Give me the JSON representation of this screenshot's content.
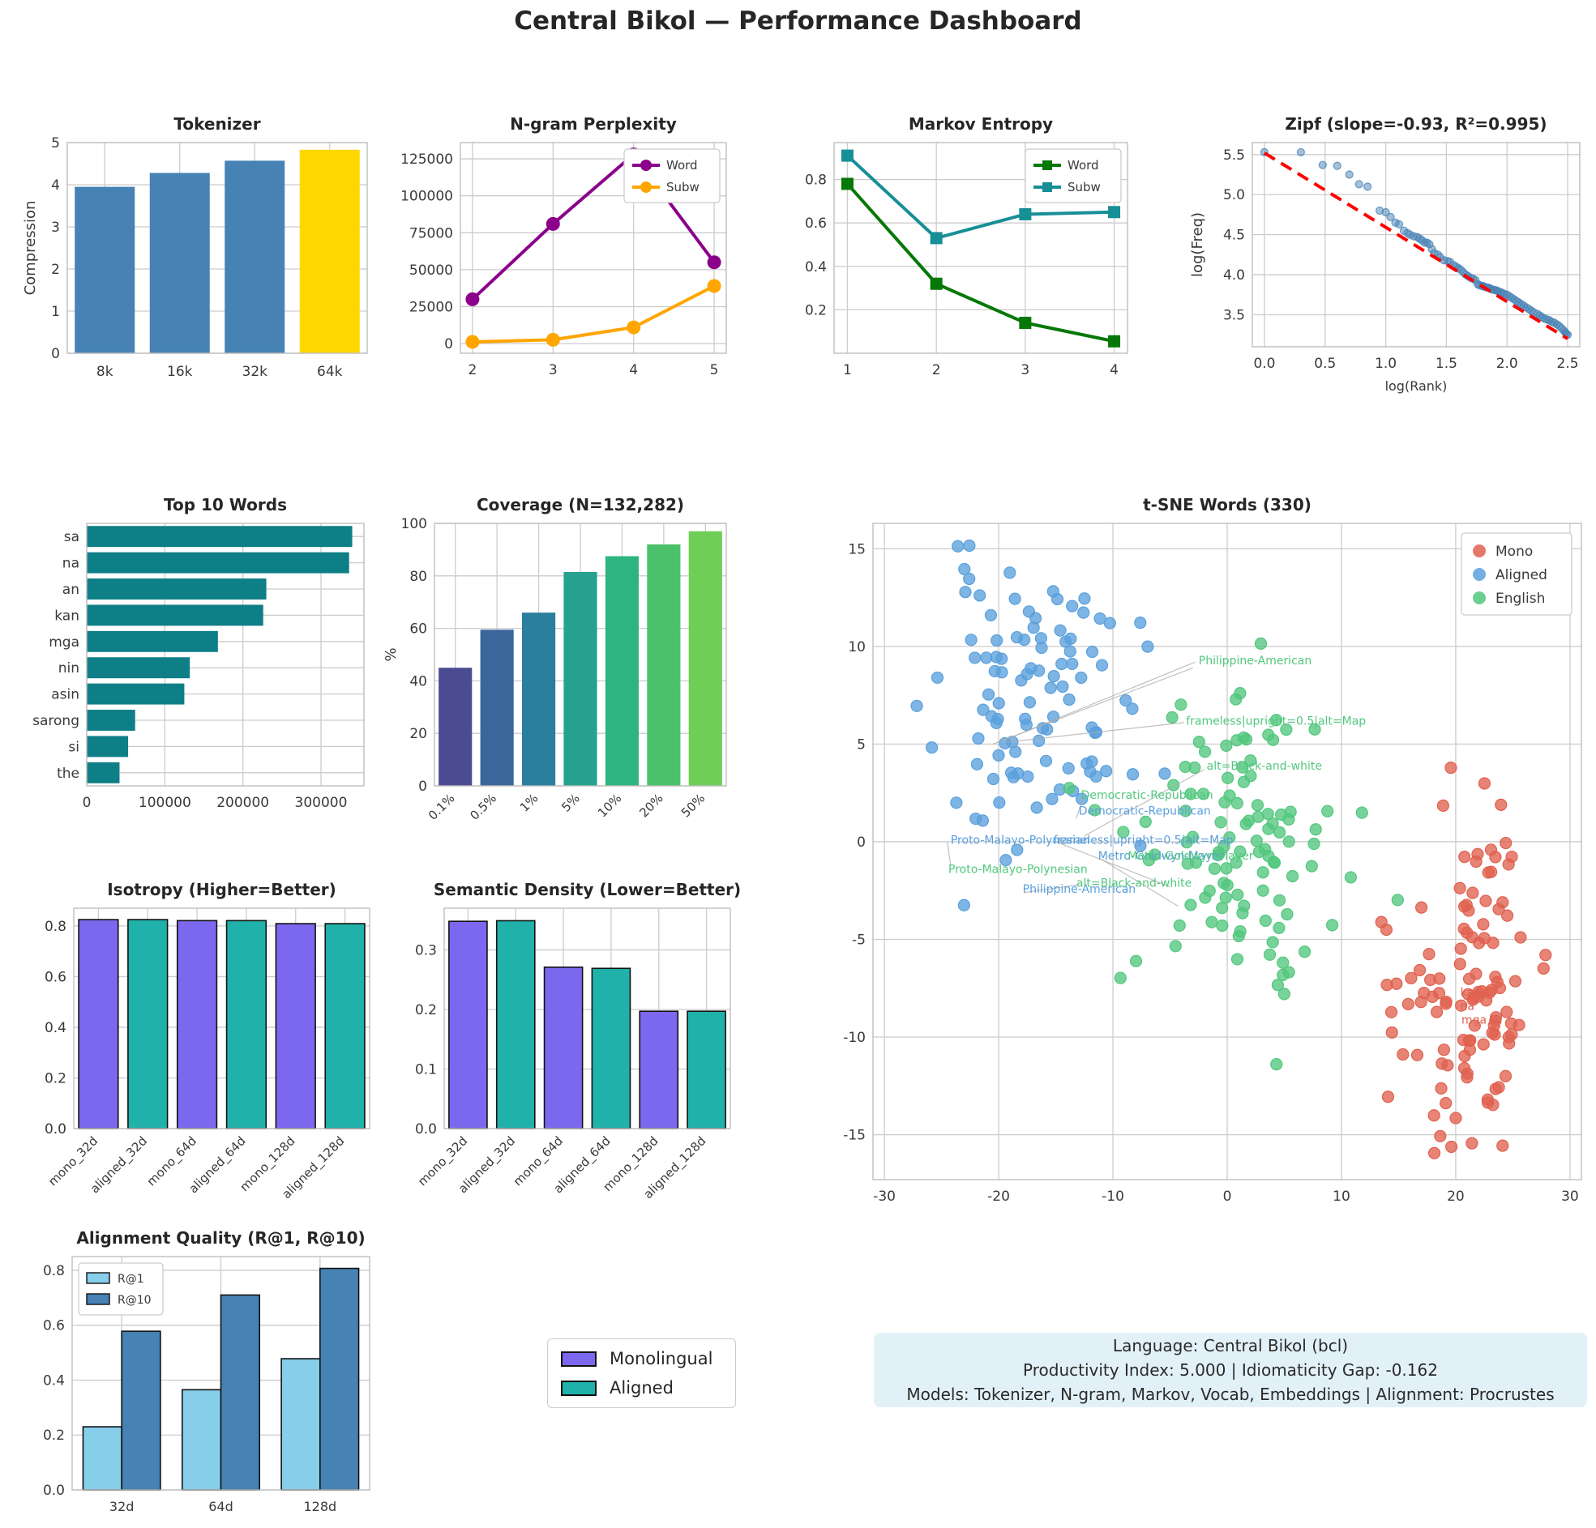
{
  "page": {
    "title": "Central Bikol — Performance Dashboard"
  },
  "info_box": {
    "line1": "Language: Central Bikol (bcl)",
    "line2": "Productivity Index: 5.000  |  Idiomaticity Gap: -0.162",
    "line3": "Models: Tokenizer, N-gram, Markov, Vocab, Embeddings  |  Alignment: Procrustes"
  },
  "legend_panel": {
    "items": [
      {
        "label": "Monolingual",
        "color": "#7B68EE"
      },
      {
        "label": "Aligned",
        "color": "#20B2AA"
      }
    ]
  },
  "chart_data": [
    {
      "id": "tokenizer",
      "type": "bar",
      "title": "Tokenizer",
      "ylabel": "Compression",
      "categories": [
        "8k",
        "16k",
        "32k",
        "64k"
      ],
      "values": [
        3.95,
        4.28,
        4.57,
        4.83
      ],
      "bar_colors": [
        "#4682B4",
        "#4682B4",
        "#4682B4",
        "#FFD700"
      ],
      "ylim": [
        0,
        5
      ],
      "ytick_vals": [
        0,
        1,
        2,
        3,
        4,
        5
      ],
      "ytick_labels": [
        "0",
        "1",
        "2",
        "3",
        "4",
        "5"
      ]
    },
    {
      "id": "ngram",
      "type": "line",
      "title": "N-gram Perplexity",
      "x": [
        2,
        3,
        4,
        5
      ],
      "series": [
        {
          "name": "Word",
          "color": "#8B008B",
          "marker": "circle",
          "values": [
            30000,
            81000,
            128000,
            55000
          ]
        },
        {
          "name": "Subw",
          "color": "#FFA500",
          "marker": "circle",
          "values": [
            1200,
            2600,
            11000,
            39000
          ]
        }
      ],
      "xlim": [
        1.85,
        5.15
      ],
      "ylim": [
        -6500,
        136000
      ],
      "xtick_vals": [
        2,
        3,
        4,
        5
      ],
      "xtick_labels": [
        "2",
        "3",
        "4",
        "5"
      ],
      "ytick_vals": [
        0,
        25000,
        50000,
        75000,
        100000,
        125000
      ],
      "ytick_labels": [
        "0",
        "25000",
        "50000",
        "75000",
        "100000",
        "125000"
      ],
      "legend_pos": "ne"
    },
    {
      "id": "markov",
      "type": "line",
      "title": "Markov Entropy",
      "x": [
        1,
        2,
        3,
        4
      ],
      "series": [
        {
          "name": "Word",
          "color": "#067806",
          "marker": "square",
          "values": [
            0.78,
            0.32,
            0.14,
            0.055
          ]
        },
        {
          "name": "Subw",
          "color": "#178F96",
          "marker": "square",
          "values": [
            0.91,
            0.53,
            0.64,
            0.65
          ]
        }
      ],
      "xlim": [
        0.85,
        4.15
      ],
      "ylim": [
        0,
        0.97
      ],
      "xtick_vals": [
        1,
        2,
        3,
        4
      ],
      "xtick_labels": [
        "1",
        "2",
        "3",
        "4"
      ],
      "ytick_vals": [
        0.2,
        0.4,
        0.6,
        0.8
      ],
      "ytick_labels": [
        "0.2",
        "0.4",
        "0.6",
        "0.8"
      ],
      "legend_pos": "ne"
    },
    {
      "id": "zipf",
      "type": "scatter",
      "title": "Zipf (slope=-0.93, R²=0.995)",
      "xlabel": "log(Rank)",
      "ylabel": "log(Freq)",
      "point_color": "#4682B4",
      "trend": {
        "color": "#FF0000",
        "x1": 0.0,
        "y1": 5.52,
        "x2": 2.5,
        "y2": 3.2
      },
      "xlim": [
        -0.1,
        2.6
      ],
      "ylim": [
        3.1,
        5.65
      ],
      "xtick_vals": [
        0,
        0.5,
        1,
        1.5,
        2,
        2.5
      ],
      "xtick_labels": [
        "0.0",
        "0.5",
        "1.0",
        "1.5",
        "2.0",
        "2.5"
      ],
      "ytick_vals": [
        3.5,
        4,
        4.5,
        5,
        5.5
      ],
      "ytick_labels": [
        "3.5",
        "4.0",
        "4.5",
        "5.0",
        "5.5"
      ],
      "points": [
        [
          0,
          5.53
        ],
        [
          0.3,
          5.53
        ],
        [
          0.48,
          5.37
        ],
        [
          0.6,
          5.36
        ],
        [
          0.7,
          5.25
        ],
        [
          0.78,
          5.13
        ],
        [
          0.85,
          5.1
        ],
        [
          0.95,
          4.8
        ],
        [
          1,
          4.78
        ],
        [
          1.04,
          4.72
        ],
        [
          1.08,
          4.65
        ],
        [
          1.11,
          4.63
        ],
        [
          1.15,
          4.55
        ],
        [
          1.18,
          4.52
        ],
        [
          1.2,
          4.5
        ],
        [
          1.23,
          4.48
        ],
        [
          1.26,
          4.47
        ],
        [
          1.28,
          4.45
        ],
        [
          1.3,
          4.43
        ],
        [
          1.32,
          4.4
        ],
        [
          1.34,
          4.4
        ],
        [
          1.36,
          4.38
        ],
        [
          1.38,
          4.32
        ],
        [
          1.4,
          4.27
        ],
        [
          1.43,
          4.25
        ],
        [
          1.45,
          4.22
        ],
        [
          1.48,
          4.18
        ],
        [
          1.51,
          4.17
        ],
        [
          1.53,
          4.16
        ],
        [
          1.56,
          4.12
        ],
        [
          1.58,
          4.1
        ],
        [
          1.6,
          4.08
        ],
        [
          1.62,
          4.06
        ],
        [
          1.64,
          4.03
        ],
        [
          1.66,
          4
        ],
        [
          1.68,
          3.98
        ],
        [
          1.7,
          3.96
        ],
        [
          1.72,
          3.95
        ],
        [
          1.74,
          3.93
        ],
        [
          1.76,
          3.88
        ],
        [
          1.77,
          3.87
        ],
        [
          1.79,
          3.86
        ],
        [
          1.8,
          3.86
        ],
        [
          1.81,
          3.85
        ],
        [
          1.83,
          3.84
        ],
        [
          1.84,
          3.84
        ],
        [
          1.86,
          3.83
        ],
        [
          1.87,
          3.82
        ],
        [
          1.89,
          3.81
        ],
        [
          1.9,
          3.81
        ],
        [
          1.92,
          3.8
        ],
        [
          1.93,
          3.79
        ],
        [
          1.95,
          3.78
        ],
        [
          1.96,
          3.77
        ],
        [
          1.98,
          3.76
        ],
        [
          2,
          3.75
        ],
        [
          2.02,
          3.73
        ],
        [
          2.04,
          3.71
        ],
        [
          2.06,
          3.69
        ],
        [
          2.08,
          3.67
        ],
        [
          2.1,
          3.65
        ],
        [
          2.12,
          3.63
        ],
        [
          2.14,
          3.61
        ],
        [
          2.16,
          3.59
        ],
        [
          2.18,
          3.57
        ],
        [
          2.2,
          3.55
        ],
        [
          2.22,
          3.53
        ],
        [
          2.25,
          3.51
        ],
        [
          2.27,
          3.49
        ],
        [
          2.29,
          3.47
        ],
        [
          2.31,
          3.45
        ],
        [
          2.33,
          3.44
        ],
        [
          2.35,
          3.43
        ],
        [
          2.37,
          3.41
        ],
        [
          2.39,
          3.4
        ],
        [
          2.41,
          3.38
        ],
        [
          2.43,
          3.36
        ],
        [
          2.45,
          3.33
        ],
        [
          2.47,
          3.3
        ],
        [
          2.48,
          3.28
        ],
        [
          2.49,
          3.26
        ],
        [
          2.5,
          3.25
        ]
      ]
    },
    {
      "id": "top10",
      "type": "hbar",
      "title": "Top 10 Words",
      "categories": [
        "sa",
        "na",
        "an",
        "kan",
        "mga",
        "nin",
        "asin",
        "sarong",
        "si",
        "the"
      ],
      "values": [
        340000,
        336000,
        230000,
        226000,
        168000,
        132000,
        125000,
        62000,
        53000,
        42000
      ],
      "bar_color": "#0E7F86",
      "xlim": [
        0,
        355000
      ],
      "xtick_vals": [
        0,
        100000,
        200000,
        300000
      ],
      "xtick_labels": [
        "0",
        "100000",
        "200000",
        "300000"
      ]
    },
    {
      "id": "coverage",
      "type": "bar",
      "title": "Coverage (N=132,282)",
      "ylabel": "%",
      "categories": [
        "0.1%",
        "0.5%",
        "1%",
        "5%",
        "10%",
        "20%",
        "50%"
      ],
      "values": [
        45,
        59.5,
        66,
        81.5,
        87.5,
        92,
        97
      ],
      "bar_colors": [
        "#4B4B91",
        "#3A679B",
        "#2A7E9E",
        "#26A08F",
        "#2EB57F",
        "#4CC16C",
        "#6ECE58"
      ],
      "ylim": [
        0,
        100
      ],
      "ytick_vals": [
        0,
        20,
        40,
        60,
        80,
        100
      ],
      "ytick_labels": [
        "0",
        "20",
        "40",
        "60",
        "80",
        "100"
      ],
      "xtick_rotate": 45
    },
    {
      "id": "tsne",
      "type": "tsne",
      "title": "t-SNE Words (330)",
      "xlim": [
        -31,
        31
      ],
      "ylim": [
        -17.3,
        16.3
      ],
      "xtick_vals": [
        -30,
        -20,
        -10,
        0,
        10,
        20,
        30
      ],
      "xtick_labels": [
        "-30",
        "-20",
        "-10",
        "0",
        "10",
        "20",
        "30"
      ],
      "ytick_vals": [
        -15,
        -10,
        -5,
        0,
        5,
        10,
        15
      ],
      "ytick_labels": [
        "-15",
        "-10",
        "-5",
        "0",
        "5",
        "10",
        "15"
      ],
      "legend": [
        {
          "label": "Mono",
          "color": "#E0614F"
        },
        {
          "label": "Aligned",
          "color": "#5AA0DC"
        },
        {
          "label": "English",
          "color": "#52C77E"
        }
      ],
      "clusters": [
        {
          "name": "Aligned",
          "color": "#5AA0DC",
          "cx": -17,
          "cy": 7,
          "sx": 4.3,
          "sy": 3.6,
          "n": 105,
          "seed": 11
        },
        {
          "name": "English",
          "color": "#52C77E",
          "cx": 0.5,
          "cy": 0.3,
          "sx": 4.6,
          "sy": 3.5,
          "n": 110,
          "seed": 22
        },
        {
          "name": "Mono",
          "color": "#E0614F",
          "cx": 21,
          "cy": -7.5,
          "sx": 3.4,
          "sy": 4.3,
          "n": 115,
          "seed": 33
        }
      ],
      "annotations": [
        {
          "text": "Philippine-American",
          "x": -2.5,
          "y": 9.3,
          "color": "#52C77E"
        },
        {
          "text": "frameless|upright=0.5|alt=Map",
          "x": -3.6,
          "y": 6.2,
          "color": "#52C77E"
        },
        {
          "text": "alt=Black-and-white",
          "x": -1.8,
          "y": 3.9,
          "color": "#52C77E"
        },
        {
          "text": "Democratic-Republican",
          "x": -12.8,
          "y": 2.4,
          "color": "#52C77E"
        },
        {
          "text": "Democratic-Republican",
          "x": -13.0,
          "y": 1.6,
          "color": "#5AA0DC"
        },
        {
          "text": "Proto-Malayo-Polynesian",
          "x": -24.2,
          "y": 0.1,
          "color": "#5AA0DC"
        },
        {
          "text": "frameless|upright=0.5|alt=Map",
          "x": -15.2,
          "y": 0.1,
          "color": "#5AA0DC"
        },
        {
          "text": "Metro-Goldwyn-Mayer",
          "x": -11.3,
          "y": -0.7,
          "color": "#5AA0DC"
        },
        {
          "text": "Metro-Goldwyn-Mayer",
          "x": -8.7,
          "y": -0.7,
          "color": "#52C77E"
        },
        {
          "text": "Proto-Malayo-Polynesian",
          "x": -24.4,
          "y": -1.4,
          "color": "#52C77E"
        },
        {
          "text": "Philippine-American",
          "x": -17.9,
          "y": -2.4,
          "color": "#5AA0DC"
        },
        {
          "text": "alt=Black-and-white",
          "x": -13.2,
          "y": -2.1,
          "color": "#52C77E"
        },
        {
          "text": "kan",
          "x": 20.4,
          "y": -7.7,
          "color": "#E0614F"
        },
        {
          "text": "na",
          "x": 20.4,
          "y": -8.4,
          "color": "#E0614F"
        },
        {
          "text": "mga",
          "x": 20.5,
          "y": -9.1,
          "color": "#E0614F"
        }
      ],
      "leader_lines": [
        [
          -19.5,
          5.2,
          -2.8,
          9.2
        ],
        [
          -19.3,
          5.1,
          -3.8,
          6.1
        ],
        [
          -20.5,
          5.0,
          -3.0,
          8.9
        ],
        [
          -13.2,
          1.2,
          -12.6,
          2.3
        ],
        [
          -24.5,
          0.0,
          -24.2,
          -1.2
        ],
        [
          -17.7,
          -2.6,
          -13.0,
          -2.2
        ],
        [
          -15.0,
          0.0,
          -5.0,
          -2.3
        ],
        [
          -11.0,
          -0.9,
          -4.3,
          -3.3
        ],
        [
          -12.5,
          0.3,
          -2.0,
          3.7
        ]
      ]
    },
    {
      "id": "isotropy",
      "type": "bar",
      "title": "Isotropy (Higher=Better)",
      "categories": [
        "mono_32d",
        "aligned_32d",
        "mono_64d",
        "aligned_64d",
        "mono_128d",
        "aligned_128d"
      ],
      "values": [
        0.825,
        0.825,
        0.821,
        0.821,
        0.809,
        0.809
      ],
      "bar_colors": [
        "#7B68EE",
        "#20B2AA",
        "#7B68EE",
        "#20B2AA",
        "#7B68EE",
        "#20B2AA"
      ],
      "bar_edge": "#111111",
      "ylim": [
        0,
        0.87
      ],
      "ytick_vals": [
        0,
        0.2,
        0.4,
        0.6,
        0.8
      ],
      "ytick_labels": [
        "0.0",
        "0.2",
        "0.4",
        "0.6",
        "0.8"
      ],
      "xtick_rotate": 45
    },
    {
      "id": "semdensity",
      "type": "bar",
      "title": "Semantic Density (Lower=Better)",
      "categories": [
        "mono_32d",
        "aligned_32d",
        "mono_64d",
        "aligned_64d",
        "mono_128d",
        "aligned_128d"
      ],
      "values": [
        0.348,
        0.349,
        0.271,
        0.269,
        0.197,
        0.197
      ],
      "bar_colors": [
        "#7B68EE",
        "#20B2AA",
        "#7B68EE",
        "#20B2AA",
        "#7B68EE",
        "#20B2AA"
      ],
      "bar_edge": "#111111",
      "ylim": [
        0,
        0.37
      ],
      "ytick_vals": [
        0,
        0.1,
        0.2,
        0.3
      ],
      "ytick_labels": [
        "0.0",
        "0.1",
        "0.2",
        "0.3"
      ],
      "xtick_rotate": 45
    },
    {
      "id": "alignment",
      "type": "grouped-bar",
      "title": "Alignment Quality (R@1, R@10)",
      "categories": [
        "32d",
        "64d",
        "128d"
      ],
      "series": [
        {
          "name": "R@1",
          "color": "#87CEEB",
          "values": [
            0.23,
            0.365,
            0.478
          ]
        },
        {
          "name": "R@10",
          "color": "#4682B4",
          "values": [
            0.578,
            0.71,
            0.807
          ]
        }
      ],
      "bar_edge": "#111111",
      "ylim": [
        0,
        0.85
      ],
      "ytick_vals": [
        0,
        0.2,
        0.4,
        0.6,
        0.8
      ],
      "ytick_labels": [
        "0.0",
        "0.2",
        "0.4",
        "0.6",
        "0.8"
      ],
      "legend_pos": "nw"
    }
  ]
}
